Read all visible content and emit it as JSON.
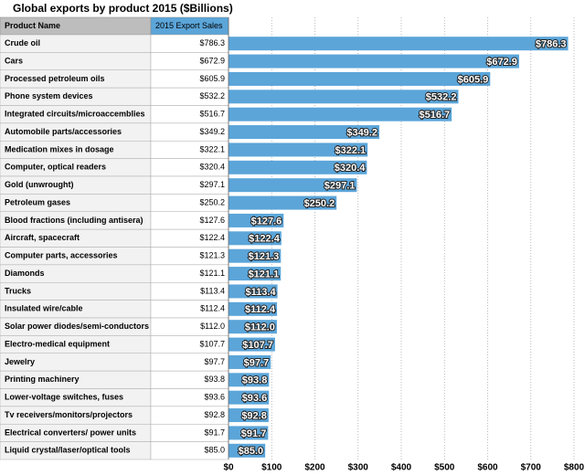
{
  "chart_data": {
    "type": "bar",
    "title": "Global exports by product 2015 ($Billions)",
    "column_headers": [
      "Product Name",
      "2015 Export Sales"
    ],
    "categories": [
      "Crude oil",
      "Cars",
      "Processed petroleum oils",
      "Phone system devices",
      "Integrated circuits/microaccemblies",
      "Automobile parts/accessories",
      "Medication mixes in dosage",
      "Computer, optical readers",
      "Gold (unwrought)",
      "Petroleum gases",
      "Blood fractions (including antisera)",
      "Aircraft, spacecraft",
      "Computer parts, accessories",
      "Diamonds",
      "Trucks",
      "Insulated wire/cable",
      "Solar power diodes/semi-conductors",
      "Electro-medical equipment",
      "Jewelry",
      "Printing machinery",
      "Lower-voltage switches, fuses",
      "Tv receivers/monitors/projectors",
      "Electrical converters/ power units",
      "Liquid crystal/laser/optical tools"
    ],
    "values": [
      786.3,
      672.9,
      605.9,
      532.2,
      516.7,
      349.2,
      322.1,
      320.4,
      297.1,
      250.2,
      127.6,
      122.4,
      121.3,
      121.1,
      113.4,
      112.4,
      112.0,
      107.7,
      97.7,
      93.8,
      93.6,
      92.8,
      91.7,
      85.0
    ],
    "value_labels": [
      "$786.3",
      "$672.9",
      "$605.9",
      "$532.2",
      "$516.7",
      "$349.2",
      "$322.1",
      "$320.4",
      "$297.1",
      "$250.2",
      "$127.6",
      "$122.4",
      "$121.3",
      "$121.1",
      "$113.4",
      "$112.4",
      "$112.0",
      "$107.7",
      "$97.7",
      "$93.8",
      "$93.6",
      "$92.8",
      "$91.7",
      "$85.0"
    ],
    "color": "#5ba5d9",
    "xlim": [
      0,
      800
    ],
    "xticks": [
      {
        "value": 0,
        "label": "$0"
      },
      {
        "value": 100,
        "label": "$100"
      },
      {
        "value": 200,
        "label": "$200"
      },
      {
        "value": 300,
        "label": "$300"
      },
      {
        "value": 400,
        "label": "$400"
      },
      {
        "value": 500,
        "label": "$500"
      },
      {
        "value": 600,
        "label": "$600"
      },
      {
        "value": 700,
        "label": "$700"
      },
      {
        "value": 800,
        "label": "$800"
      }
    ],
    "grid": true
  }
}
